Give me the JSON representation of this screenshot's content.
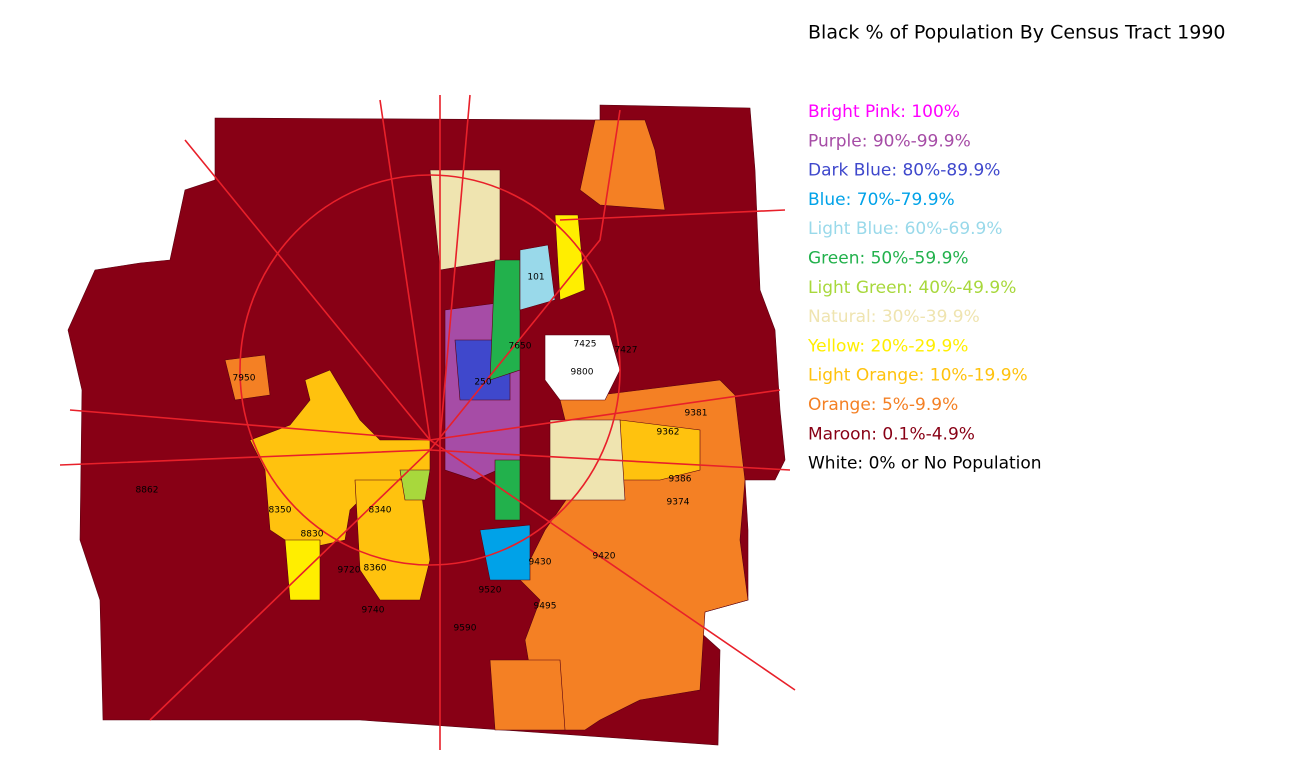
{
  "title": "Black % of Population By Census Tract 1990",
  "legend": [
    {
      "label": "Bright Pink: 100%",
      "color": "#ff00ff"
    },
    {
      "label": "Purple: 90%-99.9%",
      "color": "#a64ca6"
    },
    {
      "label": "Dark Blue: 80%-89.9%",
      "color": "#3f48cc"
    },
    {
      "label": "Blue: 70%-79.9%",
      "color": "#00a2e8"
    },
    {
      "label": "Light Blue: 60%-69.9%",
      "color": "#99d9ea"
    },
    {
      "label": "Green: 50%-59.9%",
      "color": "#22b14c"
    },
    {
      "label": "Light Green: 40%-49.9%",
      "color": "#a8d83c"
    },
    {
      "label": "Natural: 30%-39.9%",
      "color": "#efe4b0"
    },
    {
      "label": "Yellow: 20%-29.9%",
      "color": "#ffee00"
    },
    {
      "label": "Light Orange: 10%-19.9%",
      "color": "#ffc20e"
    },
    {
      "label": "Orange: 5%-9.9%",
      "color": "#f48024"
    },
    {
      "label": "Maroon: 0.1%-4.9%",
      "color": "#880015"
    },
    {
      "label": "White: 0% or No Population",
      "color": "#000000"
    }
  ],
  "tract_labels": [
    "9800",
    "8340",
    "8360",
    "8350",
    "9590",
    "9430",
    "9420",
    "9362",
    "7950",
    "7425",
    "7427",
    "9386",
    "9381",
    "9374",
    "8862",
    "9740",
    "9720",
    "9520",
    "9495",
    "8830",
    "7650",
    "250",
    "101"
  ]
}
